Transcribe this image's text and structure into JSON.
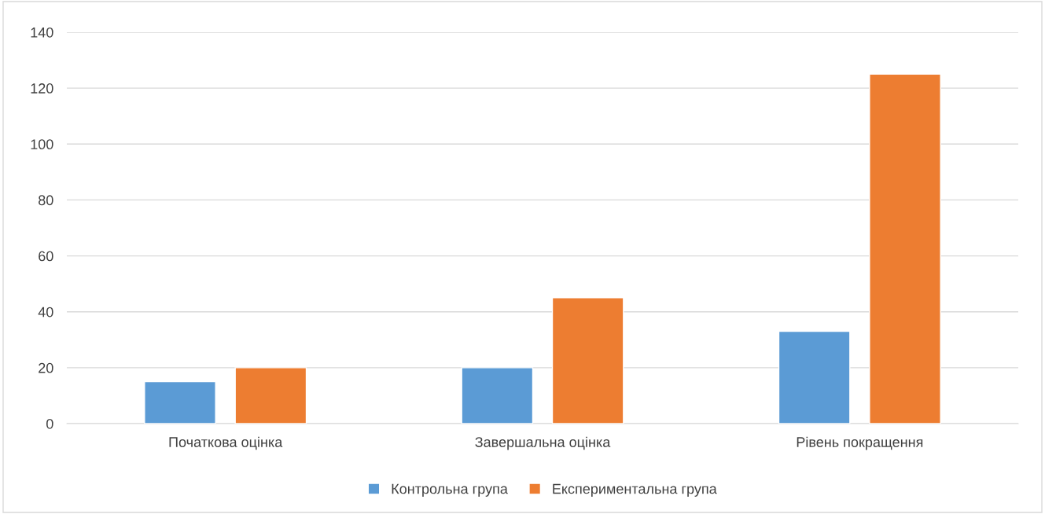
{
  "chart_data": {
    "type": "bar",
    "categories": [
      "Початкова оцінка",
      "Завершальна оцінка",
      "Рівень покращення"
    ],
    "series": [
      {
        "name": "Контрольна група",
        "color": "#5b9bd5",
        "values": [
          15,
          20,
          33
        ]
      },
      {
        "name": "Експериментальна група",
        "color": "#ed7d31",
        "values": [
          20,
          45,
          125
        ]
      }
    ],
    "ylim": [
      0,
      140
    ],
    "yticks": [
      0,
      20,
      40,
      60,
      80,
      100,
      120,
      140
    ],
    "grid": "y",
    "legend": "bottom"
  }
}
